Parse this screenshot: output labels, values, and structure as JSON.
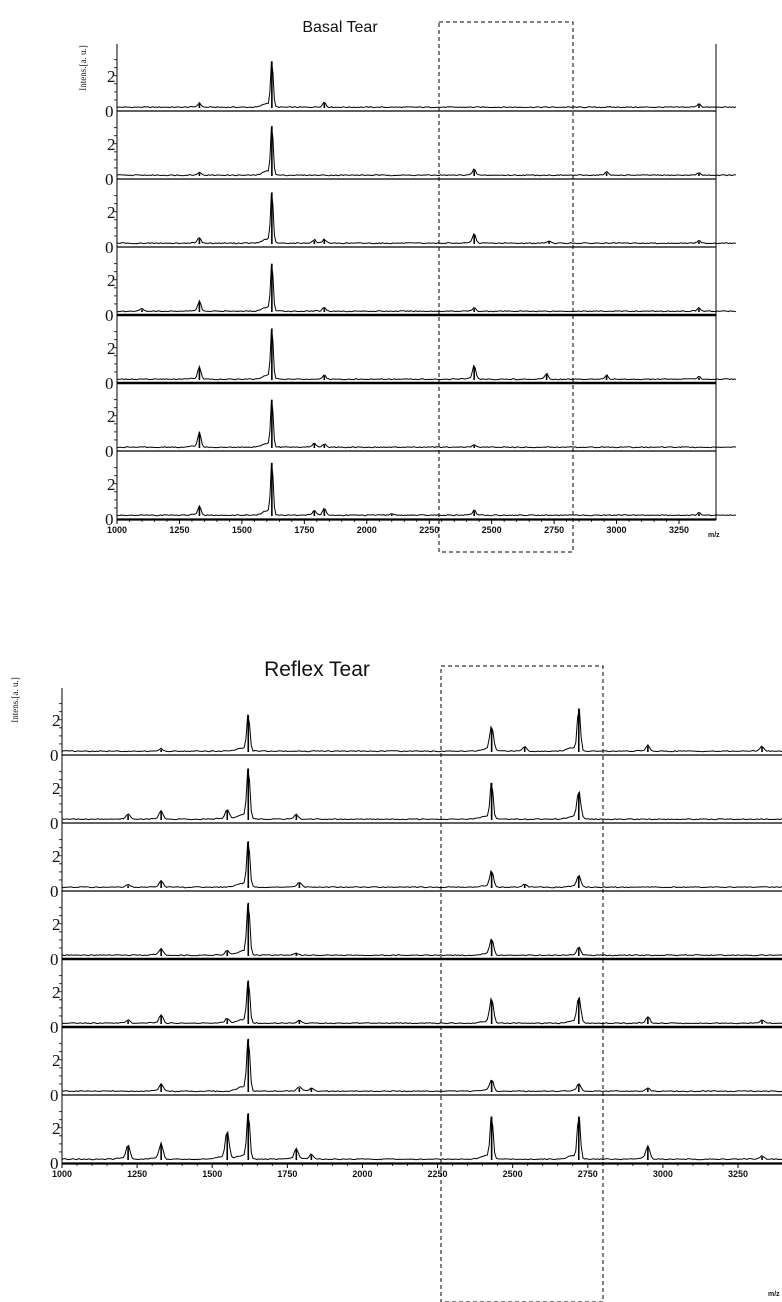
{
  "chart_data": [
    {
      "type": "line",
      "title": "Basal Tear",
      "ylabel": "Intens.[a. u.]",
      "xlabel": "m/z",
      "xlim": [
        1000,
        3480
      ],
      "ylim": [
        0,
        3.6
      ],
      "x_ticks": [
        1000,
        1250,
        1500,
        1750,
        2000,
        2250,
        2500,
        2750,
        3000,
        3250
      ],
      "y_tick_labels": [
        "0",
        "2"
      ],
      "highlight_region": [
        2330,
        2890
      ],
      "traces": [
        {
          "peaks": [
            [
              1330,
              0.25
            ],
            [
              1620,
              2.9
            ],
            [
              1830,
              0.3
            ],
            [
              3330,
              0.22
            ]
          ]
        },
        {
          "peaks": [
            [
              1330,
              0.2
            ],
            [
              1620,
              3.1
            ],
            [
              2430,
              0.35
            ],
            [
              2960,
              0.2
            ],
            [
              3330,
              0.15
            ]
          ]
        },
        {
          "peaks": [
            [
              1330,
              0.35
            ],
            [
              1620,
              3.2
            ],
            [
              1790,
              0.2
            ],
            [
              1830,
              0.25
            ],
            [
              2430,
              0.55
            ],
            [
              2730,
              0.15
            ],
            [
              3330,
              0.15
            ]
          ]
        },
        {
          "peaks": [
            [
              1100,
              0.15
            ],
            [
              1330,
              0.6
            ],
            [
              1620,
              3.0
            ],
            [
              1830,
              0.25
            ],
            [
              2430,
              0.2
            ],
            [
              3330,
              0.2
            ]
          ]
        },
        {
          "peaks": [
            [
              1330,
              0.75
            ],
            [
              1620,
              3.2
            ],
            [
              1830,
              0.25
            ],
            [
              2430,
              0.85
            ],
            [
              2720,
              0.35
            ],
            [
              2960,
              0.25
            ],
            [
              3330,
              0.15
            ]
          ]
        },
        {
          "peaks": [
            [
              1330,
              0.9
            ],
            [
              1620,
              3.0
            ],
            [
              1790,
              0.25
            ],
            [
              1830,
              0.2
            ],
            [
              2430,
              0.15
            ]
          ]
        },
        {
          "peaks": [
            [
              1330,
              0.55
            ],
            [
              1620,
              3.3
            ],
            [
              1790,
              0.3
            ],
            [
              1830,
              0.4
            ],
            [
              2100,
              0.1
            ],
            [
              2430,
              0.3
            ],
            [
              3330,
              0.15
            ]
          ]
        }
      ]
    },
    {
      "type": "line",
      "title": "Reflex Tear",
      "ylabel": "Intens.[a. u.]",
      "xlabel": "m/z",
      "xlim": [
        1000,
        3480
      ],
      "ylim": [
        0,
        3.6
      ],
      "x_ticks": [
        1000,
        1250,
        1500,
        1750,
        2000,
        2250,
        2500,
        2750,
        3000,
        3250
      ],
      "y_tick_labels": [
        "0",
        "2"
      ],
      "highlight_region": [
        2330,
        2890
      ],
      "traces": [
        {
          "peaks": [
            [
              1330,
              0.15
            ],
            [
              1620,
              2.3
            ],
            [
              2430,
              1.5
            ],
            [
              2540,
              0.3
            ],
            [
              2720,
              2.7
            ],
            [
              2950,
              0.35
            ],
            [
              3330,
              0.3
            ]
          ]
        },
        {
          "peaks": [
            [
              1220,
              0.3
            ],
            [
              1330,
              0.5
            ],
            [
              1550,
              0.6
            ],
            [
              1620,
              3.2
            ],
            [
              1780,
              0.3
            ],
            [
              2430,
              2.3
            ],
            [
              2720,
              1.7
            ]
          ]
        },
        {
          "peaks": [
            [
              1220,
              0.15
            ],
            [
              1330,
              0.4
            ],
            [
              1620,
              2.9
            ],
            [
              1790,
              0.3
            ],
            [
              2430,
              1.0
            ],
            [
              2540,
              0.2
            ],
            [
              2720,
              0.7
            ]
          ]
        },
        {
          "peaks": [
            [
              1330,
              0.4
            ],
            [
              1550,
              0.3
            ],
            [
              1620,
              3.3
            ],
            [
              1780,
              0.15
            ],
            [
              2430,
              1.0
            ],
            [
              2720,
              0.5
            ]
          ]
        },
        {
          "peaks": [
            [
              1220,
              0.2
            ],
            [
              1330,
              0.5
            ],
            [
              1550,
              0.3
            ],
            [
              1620,
              2.7
            ],
            [
              1790,
              0.2
            ],
            [
              2430,
              1.5
            ],
            [
              2720,
              1.6
            ],
            [
              2950,
              0.4
            ],
            [
              3330,
              0.2
            ]
          ]
        },
        {
          "peaks": [
            [
              1330,
              0.45
            ],
            [
              1620,
              3.3
            ],
            [
              1790,
              0.25
            ],
            [
              1830,
              0.2
            ],
            [
              2430,
              0.7
            ],
            [
              2720,
              0.45
            ],
            [
              2950,
              0.2
            ]
          ]
        },
        {
          "peaks": [
            [
              1220,
              0.85
            ],
            [
              1330,
              0.95
            ],
            [
              1550,
              1.7
            ],
            [
              1620,
              2.9
            ],
            [
              1780,
              0.65
            ],
            [
              1830,
              0.3
            ],
            [
              2430,
              2.7
            ],
            [
              2720,
              2.7
            ],
            [
              2950,
              0.8
            ],
            [
              3330,
              0.2
            ]
          ]
        }
      ]
    }
  ]
}
